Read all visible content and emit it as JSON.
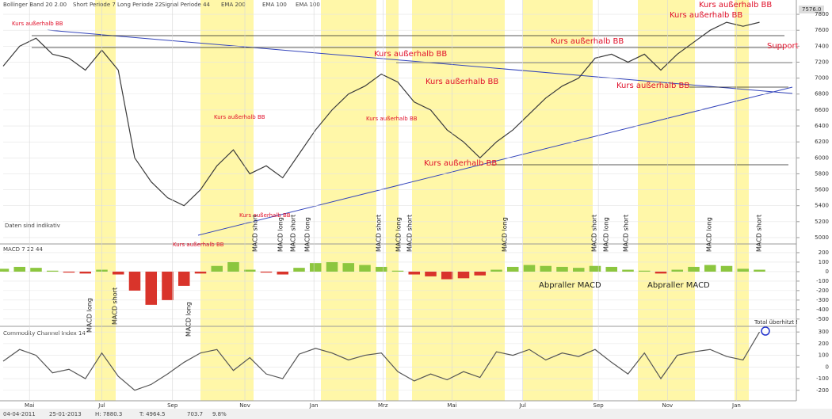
{
  "header": [
    "Bollinger Band 20 2.00",
    "Short Periode 7",
    "Long Periode 22",
    "Signal Periode 44",
    "EMA 200",
    "EMA 100",
    "EMA 100"
  ],
  "footer": [
    "04-04-2011",
    "25-01-2013",
    "H: 7880.3",
    "T: 4964.5",
    "703.7",
    "9.8%"
  ],
  "note": "Daten sind indikativ",
  "last_price": "7576.0",
  "chart_data": [
    {
      "type": "line",
      "title": "",
      "xlim": [
        0,
        48
      ],
      "ylim": [
        4950,
        7900
      ],
      "yticks": [
        5000,
        5200,
        5400,
        5600,
        5800,
        6000,
        6200,
        6400,
        6600,
        6800,
        7000,
        7200,
        7400,
        7600,
        7800
      ],
      "x": [
        0,
        1,
        2,
        3,
        4,
        5,
        6,
        7,
        8,
        9,
        10,
        11,
        12,
        13,
        14,
        15,
        16,
        17,
        18,
        19,
        20,
        21,
        22,
        23,
        24,
        25,
        26,
        27,
        28,
        29,
        30,
        31,
        32,
        33,
        34,
        35,
        36,
        37,
        38,
        39,
        40,
        41,
        42,
        43,
        44,
        45,
        46
      ],
      "series": [
        {
          "name": "Kurs",
          "color": "#3a3a3a",
          "values": [
            7150,
            7400,
            7500,
            7300,
            7250,
            7100,
            7350,
            7100,
            6000,
            5700,
            5500,
            5400,
            5600,
            5900,
            6100,
            5800,
            5900,
            5750,
            6050,
            6350,
            6600,
            6800,
            6900,
            7050,
            6950,
            6700,
            6600,
            6350,
            6200,
            6000,
            6200,
            6350,
            6550,
            6750,
            6900,
            7000,
            7250,
            7300,
            7200,
            7300,
            7100,
            7300,
            7450,
            7600,
            7700,
            7650,
            7700
          ]
        }
      ],
      "annotations": [
        "Kurs außerhalb BB",
        "Kurs außerhalb BB",
        "Kurs außerhalb BB",
        "Kurs außerhalb BB",
        "Kurs außerhalb BB",
        "Kurs außerhalb BB",
        "Kurs außerhalb BB",
        "Kurs außerhalb BB",
        "Kurs außerhalb BB",
        "Kurs außerhalb BB",
        "Kurs außerhalb BB",
        "Kurs außerhalb BB",
        "Support",
        "MACD short",
        "MACD long",
        "MACD short",
        "MACD long",
        "MACD short",
        "MACD long",
        "MACD short",
        "MACD long",
        "MACD short",
        "MACD long",
        "MACD short",
        "MACD long",
        "MACD short"
      ]
    },
    {
      "type": "bar",
      "title": "MACD 7 22 44",
      "xlim": [
        0,
        48
      ],
      "ylim": [
        -560,
        275
      ],
      "yticks": [
        200,
        100,
        0,
        -100,
        -200,
        -300,
        -400,
        -500
      ],
      "positive_color": "#8cc63f",
      "negative_color": "#d9342b",
      "x": [
        0,
        1,
        2,
        3,
        4,
        5,
        6,
        7,
        8,
        9,
        10,
        11,
        12,
        13,
        14,
        15,
        16,
        17,
        18,
        19,
        20,
        21,
        22,
        23,
        24,
        25,
        26,
        27,
        28,
        29,
        30,
        31,
        32,
        33,
        34,
        35,
        36,
        37,
        38,
        39,
        40,
        41,
        42,
        43,
        44,
        45,
        46
      ],
      "values": [
        30,
        50,
        40,
        10,
        -10,
        -20,
        20,
        -30,
        -200,
        -350,
        -300,
        -150,
        -20,
        60,
        100,
        20,
        -10,
        -30,
        40,
        90,
        100,
        90,
        70,
        50,
        10,
        -30,
        -50,
        -80,
        -70,
        -40,
        20,
        50,
        70,
        60,
        50,
        40,
        60,
        50,
        20,
        10,
        -20,
        20,
        50,
        70,
        60,
        30,
        20
      ],
      "annotations": [
        "MACD long",
        "MACD short",
        "MACD long",
        "Abpraller MACD",
        "Abpraller MACD"
      ]
    },
    {
      "type": "line",
      "title": "Commodity Channel Index 14",
      "xlim": [
        0,
        48
      ],
      "ylim": [
        -290,
        335
      ],
      "yticks": [
        300,
        200,
        100,
        0,
        -100,
        -200
      ],
      "x": [
        0,
        1,
        2,
        3,
        4,
        5,
        6,
        7,
        8,
        9,
        10,
        11,
        12,
        13,
        14,
        15,
        16,
        17,
        18,
        19,
        20,
        21,
        22,
        23,
        24,
        25,
        26,
        27,
        28,
        29,
        30,
        31,
        32,
        33,
        34,
        35,
        36,
        37,
        38,
        39,
        40,
        41,
        42,
        43,
        44,
        45,
        46
      ],
      "series": [
        {
          "name": "CCI",
          "color": "#555555",
          "values": [
            50,
            150,
            100,
            -50,
            -20,
            -100,
            120,
            -80,
            -200,
            -150,
            -60,
            40,
            120,
            150,
            -30,
            80,
            -60,
            -100,
            110,
            160,
            120,
            60,
            100,
            120,
            -40,
            -120,
            -60,
            -110,
            -40,
            -90,
            130,
            100,
            150,
            60,
            120,
            90,
            150,
            40,
            -60,
            120,
            -100,
            100,
            130,
            150,
            90,
            60,
            300
          ]
        }
      ],
      "xticks": [
        {
          "value": 1.6,
          "label": "Mai"
        },
        {
          "value": 6,
          "label": "Jul"
        },
        {
          "value": 10.3,
          "label": "Sep"
        },
        {
          "value": 14.7,
          "label": "Nov"
        },
        {
          "value": 18.9,
          "label": "Jan"
        },
        {
          "value": 23.1,
          "label": "Mrz"
        },
        {
          "value": 27.3,
          "label": "Mai"
        },
        {
          "value": 31.6,
          "label": "Jul"
        },
        {
          "value": 36.2,
          "label": "Sep"
        },
        {
          "value": 40.4,
          "label": "Nov"
        },
        {
          "value": 44.6,
          "label": "Jan"
        }
      ],
      "annotations": [
        "Total überhitzt !"
      ]
    }
  ]
}
